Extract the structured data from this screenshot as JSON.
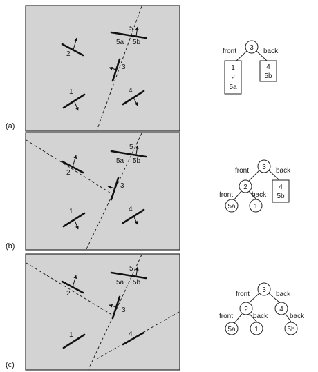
{
  "panels": [
    {
      "label": "(a)",
      "walls": [
        {
          "id": "1",
          "text": "1"
        },
        {
          "id": "2",
          "text": "2"
        },
        {
          "id": "3",
          "text": "3"
        },
        {
          "id": "4",
          "text": "4"
        },
        {
          "id": "5",
          "text": "5"
        },
        {
          "id": "5a",
          "text": "5a"
        },
        {
          "id": "5b",
          "text": "5b"
        }
      ],
      "tree": {
        "root": "3",
        "front_label": "front",
        "back_label": "back",
        "front_list": [
          "1",
          "2",
          "5a"
        ],
        "back_list": [
          "4",
          "5b"
        ]
      }
    },
    {
      "label": "(b)",
      "walls": [
        {
          "id": "1",
          "text": "1"
        },
        {
          "id": "2",
          "text": "2"
        },
        {
          "id": "3",
          "text": "3"
        },
        {
          "id": "4",
          "text": "4"
        },
        {
          "id": "5",
          "text": "5"
        },
        {
          "id": "5a",
          "text": "5a"
        },
        {
          "id": "5b",
          "text": "5b"
        }
      ],
      "tree": {
        "root": "3",
        "front_label": "front",
        "back_label": "back",
        "node2": "2",
        "node2_front_label": "front",
        "node2_back_label": "back",
        "leaf_5a": "5a",
        "leaf_1": "1",
        "back_list": [
          "4",
          "5b"
        ]
      }
    },
    {
      "label": "(c)",
      "walls": [
        {
          "id": "1",
          "text": "1"
        },
        {
          "id": "2",
          "text": "2"
        },
        {
          "id": "3",
          "text": "3"
        },
        {
          "id": "4",
          "text": "4"
        },
        {
          "id": "5",
          "text": "5"
        },
        {
          "id": "5a",
          "text": "5a"
        },
        {
          "id": "5b",
          "text": "5b"
        }
      ],
      "tree": {
        "root": "3",
        "front_label": "front",
        "back_label": "back",
        "node2": "2",
        "node2_front_label": "front",
        "node2_back_label": "back",
        "node4": "4",
        "node4_back_label": "back",
        "leaf_5a": "5a",
        "leaf_1": "1",
        "leaf_5b": "5b"
      }
    }
  ]
}
